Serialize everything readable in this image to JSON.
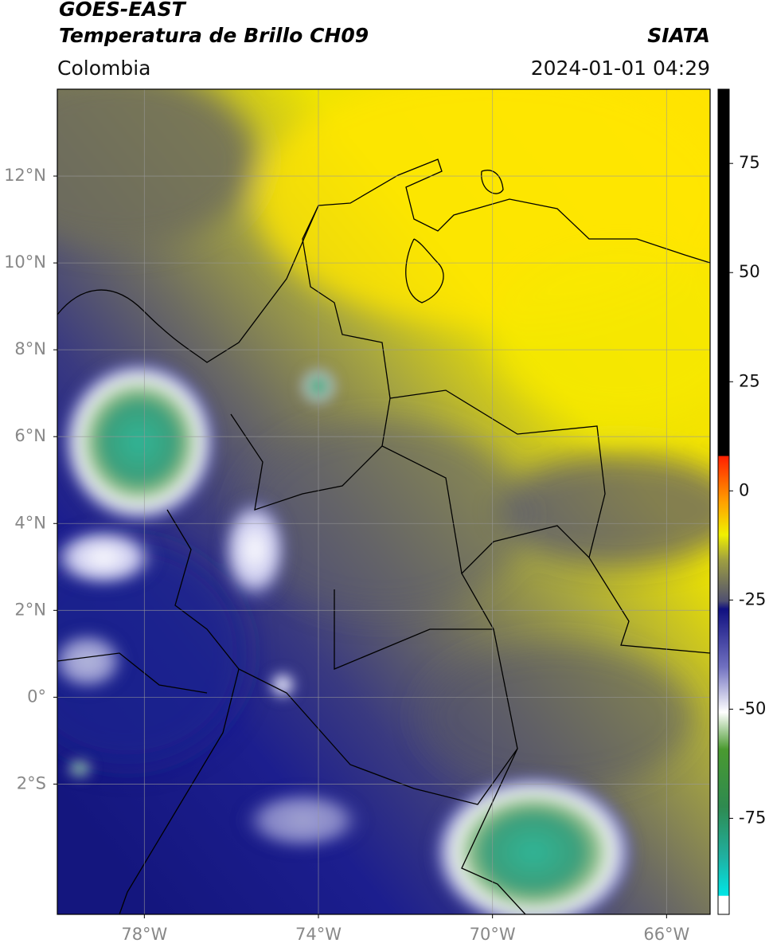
{
  "header": {
    "satellite": "GOES-EAST",
    "product": "Temperatura de Brillo CH09",
    "source": "SIATA",
    "region": "Colombia",
    "datetime": "2024-01-01 04:29"
  },
  "map": {
    "lon_lim": [
      -80,
      -65
    ],
    "lat_lim": [
      -5,
      14
    ],
    "lon_ticks": [
      {
        "value": -78,
        "label": "78°W"
      },
      {
        "value": -74,
        "label": "74°W"
      },
      {
        "value": -70,
        "label": "70°W"
      },
      {
        "value": -66,
        "label": "66°W"
      }
    ],
    "lat_ticks": [
      {
        "value": 12,
        "label": "12°N"
      },
      {
        "value": 10,
        "label": "10°N"
      },
      {
        "value": 8,
        "label": "8°N"
      },
      {
        "value": 6,
        "label": "6°N"
      },
      {
        "value": 4,
        "label": "4°N"
      },
      {
        "value": 2,
        "label": "2°N"
      },
      {
        "value": 0,
        "label": "0°"
      },
      {
        "value": -2,
        "label": "2°S"
      }
    ],
    "grid": true
  },
  "colorbar": {
    "lim": [
      -97,
      92
    ],
    "ticks": [
      75,
      50,
      25,
      0,
      -25,
      -50,
      -75
    ]
  }
}
